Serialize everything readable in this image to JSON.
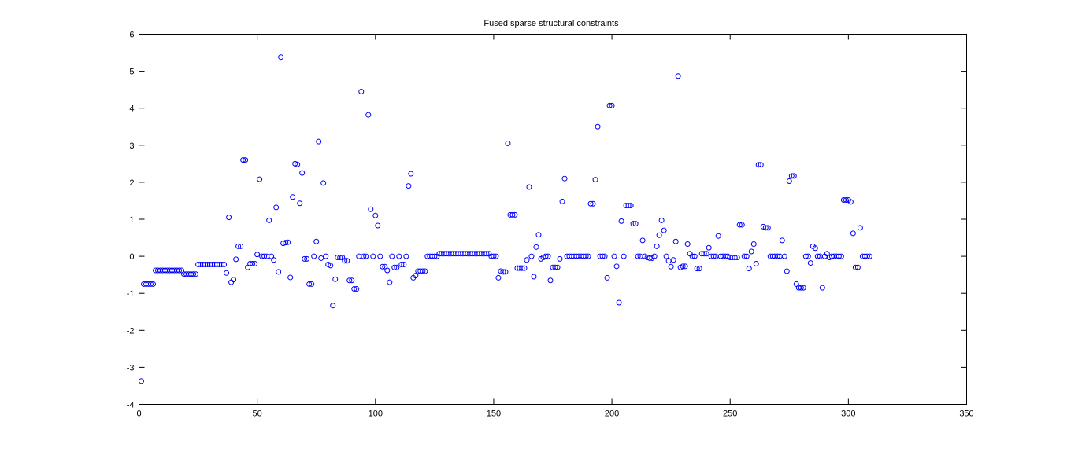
{
  "chart_data": {
    "type": "scatter",
    "title": "Fused sparse structural constraints",
    "xlabel": "",
    "ylabel": "",
    "xlim": [
      0,
      350
    ],
    "ylim": [
      -4,
      6
    ],
    "xticks": [
      0,
      50,
      100,
      150,
      200,
      250,
      300,
      350
    ],
    "yticks": [
      -4,
      -3,
      -2,
      -1,
      0,
      1,
      2,
      3,
      4,
      5,
      6
    ],
    "grid": false,
    "legend": "none",
    "marker": "circle-open",
    "color": "#0000ff",
    "x_start": 1,
    "x_step": 1,
    "values": [
      -3.37,
      -0.75,
      -0.75,
      -0.75,
      -0.75,
      -0.75,
      -0.38,
      -0.38,
      -0.38,
      -0.38,
      -0.38,
      -0.38,
      -0.38,
      -0.38,
      -0.38,
      -0.38,
      -0.38,
      -0.38,
      -0.48,
      -0.48,
      -0.48,
      -0.48,
      -0.48,
      -0.48,
      -0.22,
      -0.22,
      -0.22,
      -0.22,
      -0.22,
      -0.22,
      -0.22,
      -0.22,
      -0.22,
      -0.22,
      -0.22,
      -0.22,
      -0.45,
      1.05,
      -0.7,
      -0.63,
      -0.08,
      0.27,
      0.27,
      2.6,
      2.6,
      -0.3,
      -0.2,
      -0.2,
      -0.2,
      0.05,
      2.08,
      0.0,
      0.0,
      0.0,
      0.97,
      0.0,
      -0.1,
      1.32,
      -0.42,
      5.38,
      0.35,
      0.37,
      0.38,
      -0.57,
      1.6,
      2.5,
      2.48,
      1.43,
      2.25,
      -0.07,
      -0.07,
      -0.75,
      -0.75,
      0.0,
      0.4,
      3.1,
      -0.05,
      1.98,
      0.0,
      -0.22,
      -0.25,
      -1.33,
      -0.62,
      -0.03,
      -0.03,
      -0.03,
      -0.12,
      -0.12,
      -0.65,
      -0.65,
      -0.88,
      -0.88,
      0.0,
      4.45,
      0.0,
      0.0,
      3.82,
      1.27,
      0.0,
      1.1,
      0.83,
      0.0,
      -0.28,
      -0.28,
      -0.38,
      -0.7,
      0.0,
      -0.3,
      -0.3,
      0.0,
      -0.22,
      -0.22,
      0.0,
      1.9,
      2.23,
      -0.58,
      -0.52,
      -0.4,
      -0.4,
      -0.4,
      -0.4,
      0.0,
      0.0,
      0.0,
      0.0,
      0.0,
      0.07,
      0.07,
      0.07,
      0.07,
      0.07,
      0.07,
      0.07,
      0.07,
      0.07,
      0.07,
      0.07,
      0.07,
      0.07,
      0.07,
      0.07,
      0.07,
      0.07,
      0.07,
      0.07,
      0.07,
      0.07,
      0.07,
      0.0,
      0.0,
      0.0,
      -0.58,
      -0.4,
      -0.42,
      -0.42,
      3.05,
      1.12,
      1.12,
      1.12,
      -0.32,
      -0.32,
      -0.32,
      -0.32,
      -0.1,
      1.87,
      0.0,
      -0.55,
      0.25,
      0.58,
      -0.07,
      -0.03,
      0.0,
      0.0,
      -0.65,
      -0.3,
      -0.3,
      -0.3,
      -0.07,
      1.48,
      2.1,
      0.0,
      0.0,
      0.0,
      0.0,
      0.0,
      0.0,
      0.0,
      0.0,
      0.0,
      0.0,
      1.42,
      1.42,
      2.07,
      3.5,
      0.0,
      0.0,
      0.0,
      -0.58,
      4.07,
      4.07,
      0.0,
      -0.27,
      -1.25,
      0.95,
      0.0,
      1.37,
      1.37,
      1.37,
      0.88,
      0.88,
      0.0,
      0.0,
      0.43,
      0.0,
      -0.03,
      -0.05,
      -0.05,
      0.0,
      0.27,
      0.57,
      0.97,
      0.7,
      0.0,
      -0.12,
      -0.28,
      -0.1,
      0.4,
      4.87,
      -0.3,
      -0.27,
      -0.27,
      0.33,
      0.07,
      0.0,
      0.0,
      -0.33,
      -0.33,
      0.07,
      0.07,
      0.07,
      0.23,
      0.0,
      0.0,
      0.0,
      0.55,
      0.0,
      0.0,
      0.0,
      0.0,
      -0.03,
      -0.03,
      -0.03,
      -0.03,
      0.85,
      0.85,
      0.0,
      0.0,
      -0.33,
      0.13,
      0.33,
      -0.2,
      2.47,
      2.47,
      0.8,
      0.77,
      0.77,
      0.0,
      0.0,
      0.0,
      0.0,
      0.0,
      0.43,
      0.0,
      -0.4,
      2.03,
      2.17,
      2.17,
      -0.75,
      -0.85,
      -0.85,
      -0.85,
      0.0,
      0.0,
      -0.18,
      0.27,
      0.22,
      0.0,
      0.0,
      -0.85,
      0.0,
      0.07,
      -0.03,
      0.0,
      0.0,
      0.0,
      0.0,
      0.0,
      1.52,
      1.52,
      1.52,
      1.47,
      0.62,
      -0.3,
      -0.3,
      0.77,
      0.0,
      0.0,
      0.0,
      0.0
    ]
  }
}
